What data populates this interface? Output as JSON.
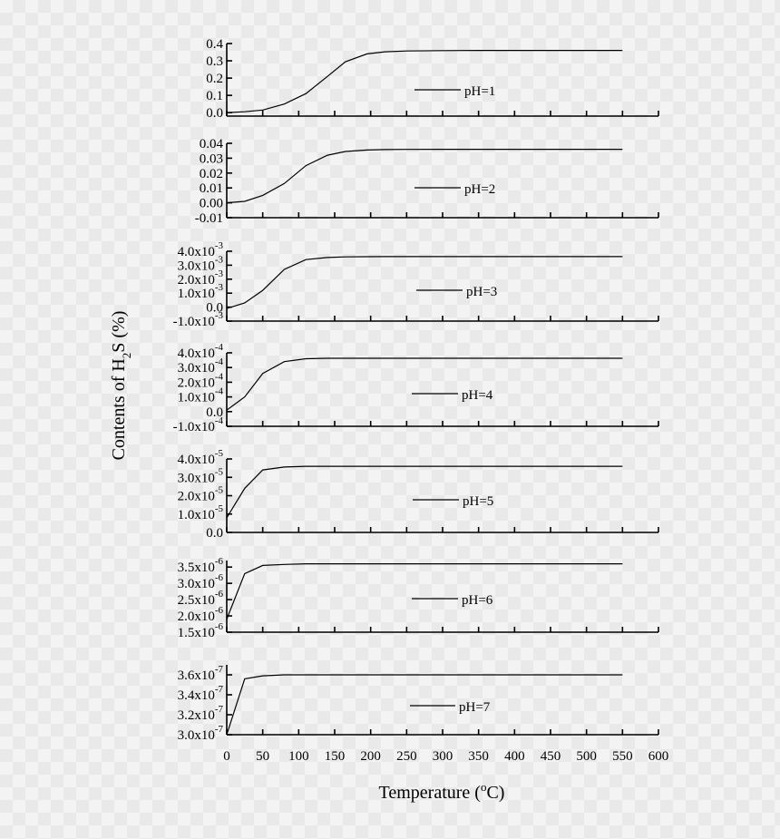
{
  "chart_data": {
    "type": "line",
    "xlabel": "Temperature (",
    "xlabel_sup": "o",
    "xlabel_end": "C)",
    "ylabel": "Contents of H",
    "ylabel_sub": "2",
    "ylabel_end": "S (%)",
    "xlim": [
      0,
      600
    ],
    "x_ticks": [
      "0",
      "50",
      "100",
      "150",
      "200",
      "250",
      "300",
      "350",
      "400",
      "450",
      "500",
      "550",
      "600"
    ],
    "x": [
      0,
      25,
      50,
      80,
      110,
      140,
      165,
      195,
      220,
      250,
      300,
      350,
      400,
      450,
      500,
      550
    ],
    "panels": [
      {
        "name": "pH=1",
        "ylim": [
          -0.02,
          0.4
        ],
        "y_ticks": [
          {
            "v": 0.0,
            "m": "0.0",
            "e": ""
          },
          {
            "v": 0.1,
            "m": "0.1",
            "e": ""
          },
          {
            "v": 0.2,
            "m": "0.2",
            "e": ""
          },
          {
            "v": 0.3,
            "m": "0.3",
            "e": ""
          },
          {
            "v": 0.4,
            "m": "0.4",
            "e": ""
          }
        ],
        "values": [
          0.0,
          0.005,
          0.015,
          0.05,
          0.11,
          0.21,
          0.295,
          0.34,
          0.352,
          0.357,
          0.359,
          0.36,
          0.36,
          0.36,
          0.36,
          0.36
        ]
      },
      {
        "name": "pH=2",
        "ylim": [
          -0.01,
          0.04
        ],
        "y_ticks": [
          {
            "v": -0.01,
            "m": "-0.01",
            "e": ""
          },
          {
            "v": 0.0,
            "m": "0.00",
            "e": ""
          },
          {
            "v": 0.01,
            "m": "0.01",
            "e": ""
          },
          {
            "v": 0.02,
            "m": "0.02",
            "e": ""
          },
          {
            "v": 0.03,
            "m": "0.03",
            "e": ""
          },
          {
            "v": 0.04,
            "m": "0.04",
            "e": ""
          }
        ],
        "values": [
          0.0,
          0.001,
          0.005,
          0.013,
          0.025,
          0.032,
          0.0345,
          0.0355,
          0.0358,
          0.0359,
          0.036,
          0.036,
          0.036,
          0.036,
          0.036,
          0.036
        ]
      },
      {
        "name": "pH=3",
        "ylim": [
          -0.001,
          0.004
        ],
        "y_ticks": [
          {
            "v": -0.001,
            "m": "-1.0x10",
            "e": "-3"
          },
          {
            "v": 0.0,
            "m": "0.0",
            "e": ""
          },
          {
            "v": 0.001,
            "m": "1.0x10",
            "e": "-3"
          },
          {
            "v": 0.002,
            "m": "2.0x10",
            "e": "-3"
          },
          {
            "v": 0.003,
            "m": "3.0x10",
            "e": "-3"
          },
          {
            "v": 0.004,
            "m": "4.0x10",
            "e": "-3"
          }
        ],
        "values": [
          -0.0001,
          0.0003,
          0.0012,
          0.0027,
          0.0034,
          0.00355,
          0.0036,
          0.00361,
          0.00362,
          0.00362,
          0.00362,
          0.00362,
          0.00362,
          0.00362,
          0.00362,
          0.00362
        ]
      },
      {
        "name": "pH=4",
        "ylim": [
          -0.0001,
          0.0004
        ],
        "y_ticks": [
          {
            "v": -0.0001,
            "m": "-1.0x10",
            "e": "-4"
          },
          {
            "v": 0.0,
            "m": "0.0",
            "e": ""
          },
          {
            "v": 0.0001,
            "m": "1.0x10",
            "e": "-4"
          },
          {
            "v": 0.0002,
            "m": "2.0x10",
            "e": "-4"
          },
          {
            "v": 0.0003,
            "m": "3.0x10",
            "e": "-4"
          },
          {
            "v": 0.0004,
            "m": "4.0x10",
            "e": "-4"
          }
        ],
        "values": [
          1e-05,
          0.0001,
          0.00026,
          0.00034,
          0.00036,
          0.000363,
          0.000363,
          0.000363,
          0.000363,
          0.000363,
          0.000363,
          0.000363,
          0.000363,
          0.000363,
          0.000363,
          0.000363
        ]
      },
      {
        "name": "pH=5",
        "ylim": [
          0,
          4e-05
        ],
        "y_ticks": [
          {
            "v": 0.0,
            "m": "0.0",
            "e": ""
          },
          {
            "v": 1e-05,
            "m": "1.0x10",
            "e": "-5"
          },
          {
            "v": 2e-05,
            "m": "2.0x10",
            "e": "-5"
          },
          {
            "v": 3e-05,
            "m": "3.0x10",
            "e": "-5"
          },
          {
            "v": 4e-05,
            "m": "4.0x10",
            "e": "-5"
          }
        ],
        "values": [
          8e-06,
          2.4e-05,
          3.4e-05,
          3.56e-05,
          3.6e-05,
          3.6e-05,
          3.6e-05,
          3.6e-05,
          3.6e-05,
          3.6e-05,
          3.6e-05,
          3.6e-05,
          3.6e-05,
          3.6e-05,
          3.6e-05,
          3.6e-05
        ]
      },
      {
        "name": "pH=6",
        "ylim": [
          1.5e-06,
          3.7e-06
        ],
        "y_ticks": [
          {
            "v": 1.5e-06,
            "m": "1.5x10",
            "e": "-6"
          },
          {
            "v": 2e-06,
            "m": "2.0x10",
            "e": "-6"
          },
          {
            "v": 2.5e-06,
            "m": "2.5x10",
            "e": "-6"
          },
          {
            "v": 3e-06,
            "m": "3.0x10",
            "e": "-6"
          },
          {
            "v": 3.5e-06,
            "m": "3.5x10",
            "e": "-6"
          }
        ],
        "values": [
          1.9e-06,
          3.3e-06,
          3.55e-06,
          3.58e-06,
          3.6e-06,
          3.6e-06,
          3.6e-06,
          3.6e-06,
          3.6e-06,
          3.6e-06,
          3.6e-06,
          3.6e-06,
          3.6e-06,
          3.6e-06,
          3.6e-06,
          3.6e-06
        ]
      },
      {
        "name": "pH=7",
        "ylim": [
          3e-07,
          3.7e-07
        ],
        "y_ticks": [
          {
            "v": 3e-07,
            "m": "3.0x10",
            "e": "-7"
          },
          {
            "v": 3.2e-07,
            "m": "3.2x10",
            "e": "-7"
          },
          {
            "v": 3.4e-07,
            "m": "3.4x10",
            "e": "-7"
          },
          {
            "v": 3.6e-07,
            "m": "3.6x10",
            "e": "-7"
          }
        ],
        "values": [
          3e-07,
          3.56e-07,
          3.59e-07,
          3.6e-07,
          3.6e-07,
          3.6e-07,
          3.6e-07,
          3.6e-07,
          3.6e-07,
          3.6e-07,
          3.6e-07,
          3.6e-07,
          3.6e-07,
          3.6e-07,
          3.6e-07,
          3.6e-07
        ]
      }
    ]
  }
}
